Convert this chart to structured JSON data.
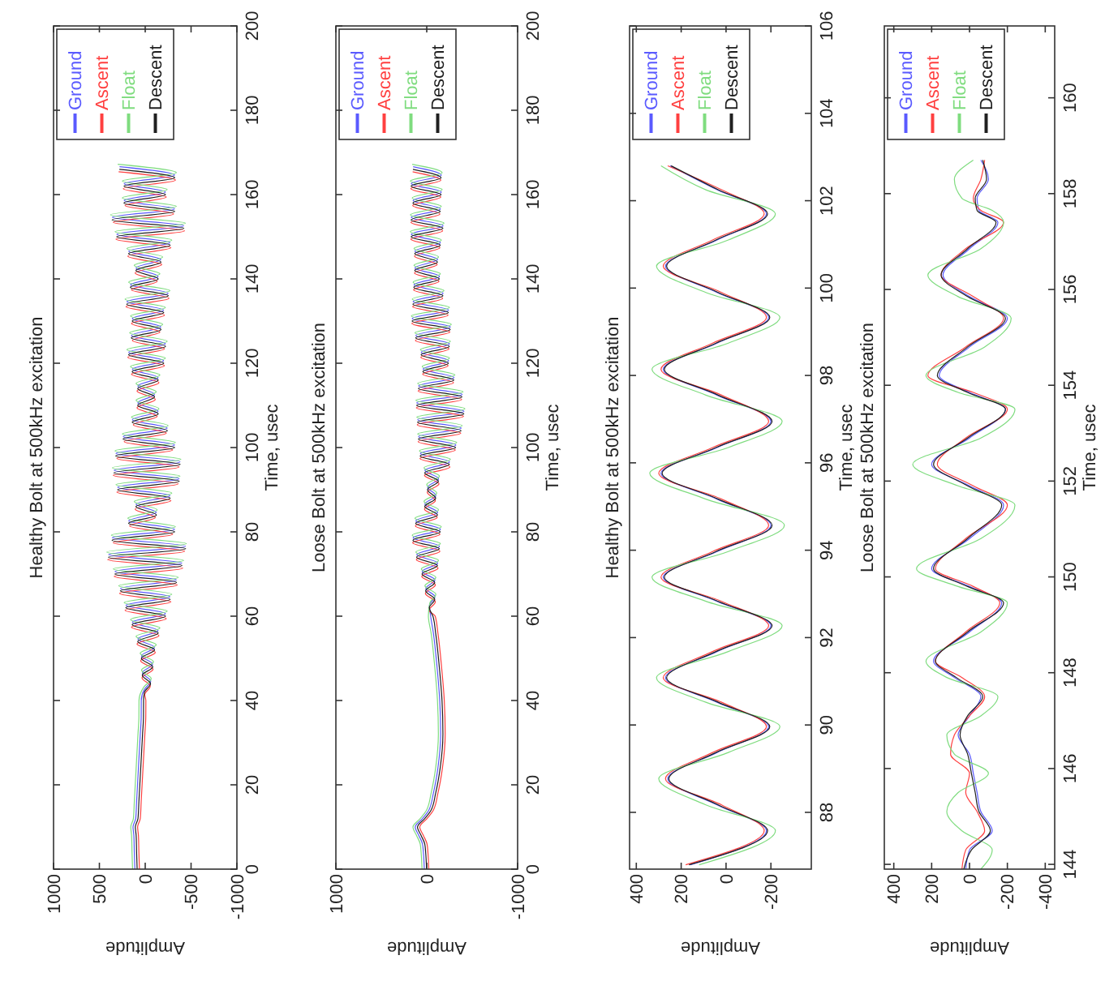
{
  "chart_data": [
    {
      "type": "line",
      "title": "Healthy Bolt at 500kHz excitation",
      "xlabel": "Amplitude",
      "ylabel": "Time, usec",
      "legend": "top left",
      "xlim": [
        1000,
        -1000
      ],
      "xticks": [
        1000,
        500,
        0,
        -500,
        -1000
      ],
      "ylim": [
        0,
        200
      ],
      "yticks": [
        0,
        20,
        40,
        60,
        80,
        100,
        120,
        140,
        160,
        180,
        200
      ],
      "series": [
        {
          "name": "Ground",
          "color": "#5a5aff",
          "x": [
            113,
            119,
            124,
            133,
            104,
            94,
            84,
            74,
            64,
            54,
            44,
            43,
            10,
            -60,
            30,
            -80,
            40,
            -100,
            80,
            -140,
            140,
            -220,
            210,
            -270,
            270,
            -340,
            330,
            -400,
            400,
            -440,
            360,
            -320,
            180,
            -120,
            100,
            -270,
            300,
            -370,
            340,
            -380,
            320,
            -320,
            240,
            -240,
            140,
            -140,
            80,
            -100,
            80,
            -140,
            140,
            -200,
            180,
            -220,
            150,
            -170,
            140,
            -200,
            200,
            -250,
            160,
            -140,
            100,
            -170,
            180,
            -270,
            310,
            -420,
            360,
            -320,
            230,
            -220,
            230,
            -320,
            280
          ],
          "values": [
            0,
            4,
            8,
            10,
            12,
            16,
            20,
            24,
            28,
            32,
            36,
            40,
            42.6,
            44.6,
            46.6,
            48.6,
            50.6,
            52.6,
            54.6,
            56.6,
            58.6,
            60.6,
            62.6,
            64.6,
            66.6,
            68.6,
            70.6,
            72.6,
            74.6,
            76.6,
            78.6,
            80.6,
            82.6,
            84.6,
            86.6,
            88.6,
            90.6,
            92.6,
            94.6,
            96.6,
            98.6,
            100.6,
            102.6,
            104.6,
            106.6,
            108.6,
            110.6,
            112.6,
            114.6,
            116.6,
            118.6,
            120.6,
            122.6,
            124.6,
            126.6,
            128.6,
            130.6,
            132.6,
            134.6,
            136.6,
            138.6,
            140.6,
            142.6,
            144.6,
            146.6,
            148.6,
            150.6,
            152.6,
            154.6,
            156.6,
            158.6,
            160.6,
            162.6,
            164.6,
            166.6
          ]
        },
        {
          "name": "Ascent",
          "color": "#ff4040",
          "x": [
            63,
            69,
            74,
            83,
            54,
            44,
            34,
            24,
            14,
            4,
            -6,
            -7,
            5,
            -55,
            35,
            -85,
            50,
            -110,
            90,
            -150,
            150,
            -230,
            220,
            -280,
            280,
            -350,
            340,
            -410,
            410,
            -430,
            350,
            -300,
            170,
            -110,
            110,
            -280,
            310,
            -360,
            350,
            -370,
            310,
            -300,
            230,
            -230,
            130,
            -130,
            90,
            -110,
            90,
            -150,
            150,
            -210,
            190,
            -210,
            140,
            -160,
            150,
            -210,
            210,
            -260,
            150,
            -130,
            110,
            -180,
            190,
            -280,
            320,
            -430,
            350,
            -310,
            220,
            -230,
            240,
            -330,
            290
          ],
          "values": [
            0,
            4,
            8,
            10,
            12,
            16,
            20,
            24,
            28,
            32,
            36,
            40,
            41.4,
            43.4,
            45.4,
            47.4,
            49.4,
            51.4,
            53.4,
            55.4,
            57.4,
            59.4,
            61.4,
            63.4,
            65.4,
            67.4,
            69.4,
            71.4,
            73.4,
            75.4,
            77.4,
            79.4,
            81.4,
            83.4,
            85.4,
            87.4,
            89.4,
            91.4,
            93.4,
            95.4,
            97.4,
            99.4,
            101.4,
            103.4,
            105.4,
            107.4,
            109.4,
            111.4,
            113.4,
            115.4,
            117.4,
            119.4,
            121.4,
            123.4,
            125.4,
            127.4,
            129.4,
            131.4,
            133.4,
            135.4,
            137.4,
            139.4,
            141.4,
            143.4,
            145.4,
            147.4,
            149.4,
            151.4,
            153.4,
            155.4,
            157.4,
            159.4,
            161.4,
            163.4,
            165.4
          ]
        },
        {
          "name": "Float",
          "color": "#7fdc7f",
          "x": [
            138,
            144,
            149,
            158,
            129,
            119,
            109,
            99,
            89,
            79,
            69,
            68,
            15,
            -65,
            40,
            -90,
            55,
            -120,
            100,
            -160,
            160,
            -240,
            230,
            -290,
            290,
            -360,
            350,
            -420,
            420,
            -450,
            370,
            -330,
            190,
            -130,
            120,
            -290,
            320,
            -380,
            360,
            -390,
            330,
            -330,
            250,
            -250,
            150,
            -150,
            100,
            -120,
            100,
            -160,
            160,
            -220,
            200,
            -240,
            170,
            -190,
            160,
            -220,
            220,
            -270,
            180,
            -160,
            120,
            -190,
            200,
            -290,
            330,
            -440,
            380,
            -340,
            250,
            -240,
            250,
            -340,
            300
          ],
          "values": [
            0,
            4,
            8,
            10,
            12,
            16,
            20,
            24,
            28,
            32,
            36,
            40,
            43.2,
            45.2,
            47.2,
            49.2,
            51.2,
            53.2,
            55.2,
            57.2,
            59.2,
            61.2,
            63.2,
            65.2,
            67.2,
            69.2,
            71.2,
            73.2,
            75.2,
            77.2,
            79.2,
            81.2,
            83.2,
            85.2,
            87.2,
            89.2,
            91.2,
            93.2,
            95.2,
            97.2,
            99.2,
            101.2,
            103.2,
            105.2,
            107.2,
            109.2,
            111.2,
            113.2,
            115.2,
            117.2,
            119.2,
            121.2,
            123.2,
            125.2,
            127.2,
            129.2,
            131.2,
            133.2,
            135.2,
            137.2,
            139.2,
            141.2,
            143.2,
            145.2,
            147.2,
            149.2,
            151.2,
            153.2,
            155.2,
            157.2,
            159.2,
            161.2,
            163.2,
            165.2,
            167.2
          ]
        },
        {
          "name": "Descent",
          "color": "#202020",
          "x": [
            88,
            94,
            99,
            108,
            79,
            69,
            59,
            49,
            39,
            29,
            19,
            18,
            8,
            -58,
            32,
            -82,
            42,
            -102,
            82,
            -142,
            142,
            -222,
            212,
            -272,
            272,
            -342,
            332,
            -402,
            402,
            -442,
            362,
            -322,
            182,
            -122,
            102,
            -272,
            302,
            -372,
            342,
            -382,
            322,
            -322,
            242,
            -242,
            142,
            -142,
            82,
            -102,
            82,
            -142,
            142,
            -202,
            182,
            -222,
            152,
            -172,
            142,
            -202,
            202,
            -252,
            162,
            -142,
            102,
            -172,
            182,
            -272,
            312,
            -422,
            362,
            -322,
            232,
            -222,
            232,
            -322,
            282
          ],
          "values": [
            0,
            4,
            8,
            10,
            12,
            16,
            20,
            24,
            28,
            32,
            36,
            40,
            42,
            44,
            46,
            48,
            50,
            52,
            54,
            56,
            58,
            60,
            62,
            64,
            66,
            68,
            70,
            72,
            74,
            76,
            78,
            80,
            82,
            84,
            86,
            88,
            90,
            92,
            94,
            96,
            98,
            100,
            102,
            104,
            106,
            108,
            110,
            112,
            114,
            116,
            118,
            120,
            122,
            124,
            126,
            128,
            130,
            132,
            134,
            136,
            138,
            140,
            142,
            144,
            146,
            148,
            150,
            152,
            154,
            156,
            158,
            160,
            162,
            164,
            166
          ]
        }
      ]
    },
    {
      "type": "line",
      "title": "Loose Bolt at 500kHz excitation",
      "xlabel": "Amplitude",
      "ylabel": "Time, usec",
      "legend": "top left",
      "xlim": [
        1000,
        -1000
      ],
      "xticks": [
        1000,
        0,
        -1000
      ],
      "ylim": [
        0,
        200
      ],
      "yticks": [
        0,
        20,
        40,
        60,
        80,
        100,
        120,
        140,
        160,
        180,
        200
      ],
      "series": [
        {
          "name": "Ground",
          "color": "#5a5aff",
          "x": [
            27,
            37,
            47,
            87,
            127,
            47,
            -23,
            -73,
            -123,
            -153,
            -143,
            -113,
            -73,
            -43,
            -30,
            -90,
            10,
            -90,
            50,
            -120,
            110,
            -140,
            150,
            -150,
            120,
            -120,
            20,
            -100,
            -10,
            -130,
            20,
            -250,
            70,
            -320,
            90,
            -380,
            100,
            -410,
            110,
            -390,
            90,
            -300,
            40,
            -240,
            60,
            -250,
            120,
            -260,
            160,
            -240,
            150,
            -180,
            140,
            -140,
            130,
            -120,
            130,
            -150,
            170,
            -180,
            170,
            -150,
            150,
            -160,
            170,
            -160,
            150
          ],
          "values": [
            0,
            4,
            6,
            8,
            10,
            12,
            14,
            18,
            24,
            32,
            40,
            48,
            56,
            60,
            62.6,
            64.6,
            66.6,
            68.6,
            70.6,
            72.6,
            74.6,
            76.6,
            78.6,
            80.6,
            82.6,
            84.6,
            86.6,
            88.6,
            90.6,
            92.6,
            94.6,
            96.6,
            98.6,
            100.6,
            102.6,
            104.6,
            106.6,
            108.6,
            110.6,
            112.6,
            114.6,
            116.6,
            118.6,
            120.6,
            122.6,
            124.6,
            126.6,
            128.6,
            130.6,
            132.6,
            134.6,
            136.6,
            138.6,
            140.6,
            142.6,
            144.6,
            146.6,
            148.6,
            150.6,
            152.6,
            154.6,
            156.6,
            158.6,
            160.6,
            162.6,
            164.6,
            166.6
          ]
        },
        {
          "name": "Ascent",
          "color": "#ff4040",
          "x": [
            -23,
            -13,
            -3,
            37,
            77,
            -3,
            -73,
            -123,
            -173,
            -203,
            -193,
            -163,
            -123,
            -93,
            -25,
            -95,
            15,
            -95,
            55,
            -125,
            115,
            -145,
            155,
            -145,
            125,
            -115,
            25,
            -95,
            -5,
            -135,
            25,
            -255,
            75,
            -315,
            95,
            -375,
            105,
            -405,
            115,
            -385,
            95,
            -295,
            45,
            -235,
            65,
            -245,
            125,
            -255,
            165,
            -235,
            155,
            -175,
            145,
            -135,
            135,
            -115,
            135,
            -145,
            175,
            -175,
            175,
            -145,
            155,
            -155,
            175,
            -155,
            155
          ],
          "values": [
            0,
            4,
            6,
            8,
            10,
            12,
            14,
            18,
            24,
            32,
            40,
            48,
            56,
            60,
            61.4,
            63.4,
            65.4,
            67.4,
            69.4,
            71.4,
            73.4,
            75.4,
            77.4,
            79.4,
            81.4,
            83.4,
            85.4,
            87.4,
            89.4,
            91.4,
            93.4,
            95.4,
            97.4,
            99.4,
            101.4,
            103.4,
            105.4,
            107.4,
            109.4,
            111.4,
            113.4,
            115.4,
            117.4,
            119.4,
            121.4,
            123.4,
            125.4,
            127.4,
            129.4,
            131.4,
            133.4,
            135.4,
            137.4,
            139.4,
            141.4,
            143.4,
            145.4,
            147.4,
            149.4,
            151.4,
            153.4,
            155.4,
            157.4,
            159.4,
            161.4,
            163.4,
            165.4
          ]
        },
        {
          "name": "Float",
          "color": "#7fdc7f",
          "x": [
            52,
            62,
            72,
            112,
            152,
            72,
            2,
            -48,
            -98,
            -128,
            -118,
            -88,
            -48,
            -18,
            -35,
            -100,
            20,
            -100,
            60,
            -130,
            120,
            -150,
            160,
            -160,
            130,
            -130,
            30,
            -110,
            0,
            -140,
            30,
            -260,
            80,
            -330,
            100,
            -390,
            110,
            -420,
            120,
            -400,
            100,
            -310,
            50,
            -250,
            70,
            -260,
            130,
            -270,
            170,
            -250,
            160,
            -190,
            150,
            -150,
            140,
            -130,
            140,
            -160,
            180,
            -190,
            180,
            -160,
            160,
            -170,
            180,
            -170,
            160
          ],
          "values": [
            0,
            4,
            6,
            8,
            10,
            12,
            14,
            18,
            24,
            32,
            40,
            48,
            56,
            60,
            63.2,
            65.2,
            67.2,
            69.2,
            71.2,
            73.2,
            75.2,
            77.2,
            79.2,
            81.2,
            83.2,
            85.2,
            87.2,
            89.2,
            91.2,
            93.2,
            95.2,
            97.2,
            99.2,
            101.2,
            103.2,
            105.2,
            107.2,
            109.2,
            111.2,
            113.2,
            115.2,
            117.2,
            119.2,
            121.2,
            123.2,
            125.2,
            127.2,
            129.2,
            131.2,
            133.2,
            135.2,
            137.2,
            139.2,
            141.2,
            143.2,
            145.2,
            147.2,
            149.2,
            151.2,
            153.2,
            155.2,
            157.2,
            159.2,
            161.2,
            163.2,
            165.2,
            167.2
          ]
        },
        {
          "name": "Descent",
          "color": "#202020",
          "x": [
            2,
            12,
            22,
            62,
            102,
            22,
            -48,
            -98,
            -148,
            -178,
            -168,
            -138,
            -98,
            -68,
            -28,
            -88,
            12,
            -88,
            52,
            -118,
            112,
            -138,
            152,
            -148,
            122,
            -118,
            22,
            -98,
            -8,
            -128,
            22,
            -248,
            72,
            -318,
            92,
            -378,
            102,
            -408,
            112,
            -388,
            92,
            -298,
            42,
            -238,
            62,
            -248,
            122,
            -258,
            162,
            -238,
            152,
            -178,
            142,
            -138,
            132,
            -118,
            132,
            -148,
            172,
            -178,
            172,
            -148,
            152,
            -158,
            172,
            -158,
            152
          ],
          "values": [
            0,
            4,
            6,
            8,
            10,
            12,
            14,
            18,
            24,
            32,
            40,
            48,
            56,
            60,
            62,
            64,
            66,
            68,
            70,
            72,
            74,
            76,
            78,
            80,
            82,
            84,
            86,
            88,
            90,
            92,
            94,
            96,
            98,
            100,
            102,
            104,
            106,
            108,
            110,
            112,
            114,
            116,
            118,
            120,
            122,
            124,
            126,
            128,
            130,
            132,
            134,
            136,
            138,
            140,
            142,
            144,
            146,
            148,
            150,
            152,
            154,
            156,
            158,
            160,
            162,
            164,
            166
          ]
        }
      ]
    },
    {
      "type": "line",
      "title": "Healthy Bolt at 500kHz excitation",
      "xlabel": "Amplitude",
      "ylabel": "Time, usec",
      "legend": "top left",
      "xlim": [
        430,
        -380
      ],
      "xticks": [
        400,
        200,
        0,
        -200
      ],
      "ylim": [
        86.7,
        106
      ],
      "yticks": [
        88,
        90,
        92,
        94,
        96,
        98,
        100,
        102,
        104,
        106
      ],
      "series": [
        {
          "name": "Ground",
          "color": "#5a5aff",
          "x": [
            160,
            -180,
            40,
            260,
            40,
            -190,
            40,
            270,
            40,
            -200,
            40,
            280,
            40,
            -200,
            40,
            290,
            40,
            -200,
            40,
            280,
            40,
            -190,
            40,
            270,
            40,
            -180,
            40,
            250
          ],
          "values": [
            86.8,
            87.58,
            88.17,
            88.77,
            89.37,
            89.96,
            90.52,
            91.08,
            91.68,
            92.27,
            92.83,
            93.38,
            93.97,
            94.57,
            95.17,
            95.76,
            96.35,
            96.95,
            97.55,
            98.14,
            98.74,
            99.33,
            99.9,
            100.5,
            101.1,
            101.7,
            102.25,
            102.8
          ]
        },
        {
          "name": "Ascent",
          "color": "#ff4040",
          "x": [
            180,
            -170,
            20,
            270,
            60,
            -180,
            20,
            280,
            60,
            -190,
            20,
            290,
            60,
            -190,
            20,
            300,
            60,
            -190,
            20,
            290,
            60,
            -180,
            20,
            280,
            60,
            -170,
            20,
            260
          ],
          "values": [
            86.8,
            87.58,
            88.17,
            88.77,
            89.37,
            89.96,
            90.52,
            91.08,
            91.68,
            92.27,
            92.83,
            93.38,
            93.97,
            94.57,
            95.17,
            95.76,
            96.35,
            96.95,
            97.55,
            98.14,
            98.74,
            99.33,
            99.9,
            100.5,
            101.1,
            101.7,
            102.25,
            102.8
          ]
        },
        {
          "name": "Float",
          "color": "#7fdc7f",
          "x": [
            120,
            -220,
            90,
            300,
            -10,
            -240,
            90,
            310,
            -10,
            -250,
            90,
            330,
            -10,
            -260,
            90,
            340,
            -10,
            -250,
            90,
            330,
            -10,
            -240,
            90,
            310,
            -10,
            -220,
            90,
            290
          ],
          "values": [
            86.8,
            87.58,
            88.17,
            88.77,
            89.37,
            89.96,
            90.52,
            91.08,
            91.68,
            92.27,
            92.83,
            93.38,
            93.97,
            94.57,
            95.17,
            95.76,
            96.35,
            96.95,
            97.55,
            98.14,
            98.74,
            99.33,
            99.9,
            100.5,
            101.1,
            101.7,
            102.25,
            102.8
          ]
        },
        {
          "name": "Descent",
          "color": "#202020",
          "x": [
            165,
            -185,
            35,
            255,
            45,
            -195,
            35,
            265,
            45,
            -205,
            35,
            275,
            45,
            -205,
            35,
            285,
            45,
            -205,
            35,
            275,
            45,
            -195,
            35,
            265,
            45,
            -185,
            35,
            245
          ],
          "values": [
            86.8,
            87.58,
            88.17,
            88.77,
            89.37,
            89.96,
            90.52,
            91.08,
            91.68,
            92.27,
            92.83,
            93.38,
            93.97,
            94.57,
            95.17,
            95.76,
            96.35,
            96.95,
            97.55,
            98.14,
            98.74,
            99.33,
            99.9,
            100.5,
            101.1,
            101.7,
            102.25,
            102.8
          ]
        }
      ]
    },
    {
      "type": "line",
      "title": "Loose Bolt at 500kHz excitation",
      "xlabel": "Amplitude",
      "ylabel": "Time, usec",
      "legend": "top left",
      "xlim": [
        450,
        -450
      ],
      "xticks": [
        400,
        200,
        0,
        -200,
        -400
      ],
      "ylim": [
        143.9,
        161.5
      ],
      "yticks": [
        144,
        146,
        148,
        150,
        152,
        154,
        156,
        158,
        160
      ],
      "series": [
        {
          "name": "Ground",
          "color": "#5a5aff",
          "x": [
            20,
            0,
            -120,
            -60,
            -40,
            -20,
            0,
            60,
            0,
            -60,
            80,
            190,
            0,
            -170,
            0,
            200,
            0,
            -180,
            0,
            200,
            0,
            -190,
            0,
            160,
            0,
            -200,
            0,
            140,
            0,
            -150,
            -50,
            -40,
            -100,
            -60
          ],
          "values": [
            143.9,
            144.3,
            144.7,
            145.1,
            145.5,
            145.9,
            146.3,
            146.7,
            147.1,
            147.5,
            147.9,
            148.24,
            148.85,
            149.46,
            149.8,
            150.17,
            150.8,
            151.5,
            151.9,
            152.35,
            152.9,
            153.5,
            153.85,
            154.2,
            154.8,
            155.4,
            155.85,
            156.3,
            156.85,
            157.4,
            157.65,
            157.9,
            158.3,
            158.7
          ]
        },
        {
          "name": "Ascent",
          "color": "#ff4040",
          "x": [
            40,
            20,
            -80,
            -40,
            20,
            0,
            100,
            80,
            0,
            -80,
            40,
            180,
            20,
            -160,
            -20,
            180,
            20,
            -200,
            -20,
            170,
            20,
            -200,
            -20,
            220,
            20,
            -180,
            -20,
            150,
            20,
            -180,
            -60,
            -20,
            -60,
            -80
          ],
          "values": [
            143.9,
            144.3,
            144.7,
            145.1,
            145.5,
            145.9,
            146.3,
            146.7,
            147.1,
            147.5,
            147.9,
            148.24,
            148.85,
            149.46,
            149.8,
            150.17,
            150.8,
            151.5,
            151.9,
            152.35,
            152.9,
            153.5,
            153.85,
            154.2,
            154.8,
            155.4,
            155.85,
            156.3,
            156.85,
            157.4,
            157.65,
            157.9,
            158.3,
            158.7
          ]
        },
        {
          "name": "Float",
          "color": "#7fdc7f",
          "x": [
            -60,
            -120,
            40,
            120,
            60,
            -100,
            80,
            120,
            -60,
            -150,
            120,
            230,
            -60,
            -200,
            60,
            280,
            -60,
            -240,
            60,
            300,
            -60,
            -240,
            60,
            230,
            -80,
            -220,
            60,
            220,
            -60,
            -180,
            -120,
            40,
            80,
            -20
          ],
          "values": [
            143.9,
            144.3,
            144.7,
            145.1,
            145.5,
            145.9,
            146.3,
            146.7,
            147.1,
            147.5,
            147.9,
            148.24,
            148.85,
            149.46,
            149.8,
            150.17,
            150.8,
            151.5,
            151.9,
            152.35,
            152.9,
            153.5,
            153.85,
            154.2,
            154.8,
            155.4,
            155.85,
            156.3,
            156.85,
            157.4,
            157.65,
            157.9,
            158.3,
            158.7
          ]
        },
        {
          "name": "Descent",
          "color": "#202020",
          "x": [
            30,
            -10,
            -110,
            -50,
            -30,
            -10,
            10,
            50,
            10,
            -70,
            70,
            180,
            10,
            -180,
            10,
            190,
            10,
            -170,
            10,
            190,
            10,
            -190,
            10,
            170,
            10,
            -190,
            10,
            150,
            10,
            -140,
            -40,
            -30,
            -90,
            -70
          ],
          "values": [
            143.9,
            144.3,
            144.7,
            145.1,
            145.5,
            145.9,
            146.3,
            146.7,
            147.1,
            147.5,
            147.9,
            148.24,
            148.85,
            149.46,
            149.8,
            150.17,
            150.8,
            151.5,
            151.9,
            152.35,
            152.9,
            153.5,
            153.85,
            154.2,
            154.8,
            155.4,
            155.85,
            156.3,
            156.85,
            157.4,
            157.65,
            157.9,
            158.3,
            158.7
          ]
        }
      ]
    }
  ]
}
